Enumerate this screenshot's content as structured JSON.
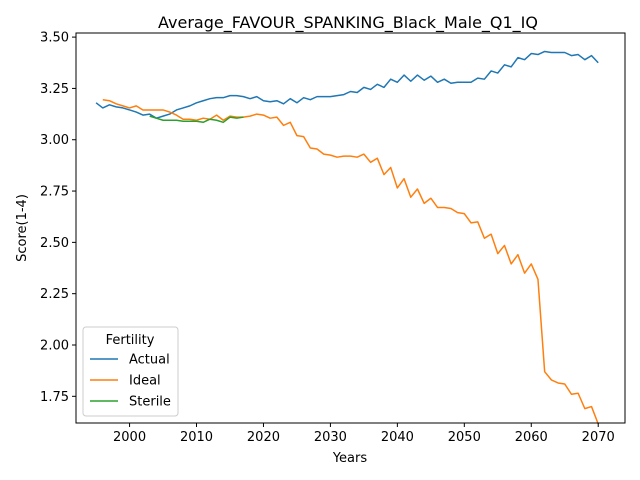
{
  "chart_data": {
    "type": "line",
    "title": "Average_FAVOUR_SPANKING_Black_Male_Q1_IQ",
    "xlabel": "Years",
    "ylabel": "Score(1-4)",
    "xlim": [
      1992,
      2074
    ],
    "ylim": [
      1.62,
      3.52
    ],
    "xticks": [
      2000,
      2010,
      2020,
      2030,
      2040,
      2050,
      2060,
      2070
    ],
    "yticks": [
      1.75,
      2.0,
      2.25,
      2.5,
      2.75,
      3.0,
      3.25,
      3.5
    ],
    "ytick_labels": [
      "1.75",
      "2.00",
      "2.25",
      "2.50",
      "2.75",
      "3.00",
      "3.25",
      "3.50"
    ],
    "grid": false,
    "legend": {
      "title": "Fertility",
      "placement": "lower-left"
    },
    "series": [
      {
        "name": "Actual",
        "color": "#1f77b4",
        "x": [
          1995,
          1996,
          1997,
          1998,
          1999,
          2000,
          2001,
          2002,
          2003,
          2004,
          2005,
          2006,
          2007,
          2008,
          2009,
          2010,
          2011,
          2012,
          2013,
          2014,
          2015,
          2016,
          2017,
          2018,
          2019,
          2020,
          2021,
          2022,
          2023,
          2024,
          2025,
          2026,
          2027,
          2028,
          2029,
          2030,
          2031,
          2032,
          2033,
          2034,
          2035,
          2036,
          2037,
          2038,
          2039,
          2040,
          2041,
          2042,
          2043,
          2044,
          2045,
          2046,
          2047,
          2048,
          2049,
          2050,
          2051,
          2052,
          2053,
          2054,
          2055,
          2056,
          2057,
          2058,
          2059,
          2060,
          2061,
          2062,
          2063,
          2064,
          2065,
          2066,
          2067,
          2068,
          2069,
          2070
        ],
        "values": [
          3.18,
          3.155,
          3.17,
          3.16,
          3.155,
          3.145,
          3.135,
          3.12,
          3.125,
          3.105,
          3.115,
          3.125,
          3.145,
          3.155,
          3.165,
          3.18,
          3.19,
          3.2,
          3.205,
          3.205,
          3.215,
          3.215,
          3.21,
          3.2,
          3.21,
          3.19,
          3.185,
          3.19,
          3.175,
          3.2,
          3.18,
          3.205,
          3.195,
          3.21,
          3.21,
          3.21,
          3.215,
          3.22,
          3.235,
          3.23,
          3.255,
          3.245,
          3.27,
          3.255,
          3.295,
          3.28,
          3.315,
          3.285,
          3.315,
          3.29,
          3.31,
          3.28,
          3.295,
          3.275,
          3.28,
          3.28,
          3.28,
          3.3,
          3.295,
          3.335,
          3.325,
          3.365,
          3.355,
          3.4,
          3.39,
          3.42,
          3.415,
          3.43,
          3.425,
          3.425,
          3.425,
          3.41,
          3.415,
          3.39,
          3.41,
          3.375
        ]
      },
      {
        "name": "Ideal",
        "color": "#ff7f0e",
        "x": [
          1996,
          1997,
          1998,
          1999,
          2000,
          2001,
          2002,
          2003,
          2004,
          2005,
          2006,
          2007,
          2008,
          2009,
          2010,
          2011,
          2012,
          2013,
          2014,
          2015,
          2016,
          2017,
          2018,
          2019,
          2020,
          2021,
          2022,
          2023,
          2024,
          2025,
          2026,
          2027,
          2028,
          2029,
          2030,
          2031,
          2032,
          2033,
          2034,
          2035,
          2036,
          2037,
          2038,
          2039,
          2040,
          2041,
          2042,
          2043,
          2044,
          2045,
          2046,
          2047,
          2048,
          2049,
          2050,
          2051,
          2052,
          2053,
          2054,
          2055,
          2056,
          2057,
          2058,
          2059,
          2060,
          2061,
          2062,
          2063,
          2064,
          2065,
          2066,
          2067,
          2068,
          2069,
          2070
        ],
        "values": [
          3.195,
          3.19,
          3.175,
          3.165,
          3.155,
          3.165,
          3.145,
          3.145,
          3.145,
          3.145,
          3.135,
          3.12,
          3.1,
          3.1,
          3.095,
          3.105,
          3.1,
          3.12,
          3.095,
          3.115,
          3.11,
          3.11,
          3.115,
          3.125,
          3.12,
          3.105,
          3.11,
          3.07,
          3.085,
          3.02,
          3.015,
          2.96,
          2.955,
          2.93,
          2.925,
          2.915,
          2.92,
          2.92,
          2.915,
          2.93,
          2.89,
          2.91,
          2.83,
          2.865,
          2.765,
          2.81,
          2.72,
          2.76,
          2.69,
          2.715,
          2.67,
          2.67,
          2.665,
          2.645,
          2.64,
          2.595,
          2.6,
          2.52,
          2.54,
          2.445,
          2.485,
          2.395,
          2.44,
          2.35,
          2.395,
          2.32,
          1.87,
          1.83,
          1.815,
          1.81,
          1.76,
          1.765,
          1.69,
          1.7,
          1.615
        ]
      },
      {
        "name": "Sterile",
        "color": "#2ca02c",
        "x": [
          2003,
          2004,
          2005,
          2006,
          2007,
          2008,
          2009,
          2010,
          2011,
          2012,
          2013,
          2014,
          2015,
          2016,
          2017
        ],
        "values": [
          3.115,
          3.105,
          3.095,
          3.095,
          3.095,
          3.09,
          3.09,
          3.09,
          3.085,
          3.1,
          3.095,
          3.085,
          3.11,
          3.105,
          3.11
        ]
      }
    ]
  }
}
